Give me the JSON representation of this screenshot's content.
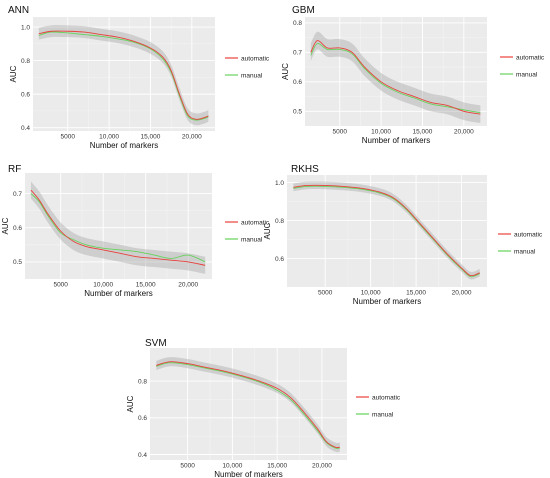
{
  "chart_data": [
    {
      "type": "line",
      "title": "ANN",
      "xlabel": "Number of markers",
      "ylabel": "AUC",
      "xlim": [
        800,
        22800
      ],
      "ylim": [
        0.38,
        1.06
      ],
      "xticks": [
        {
          "v": 5000,
          "label": "5000"
        },
        {
          "v": 10000,
          "label": "10,000"
        },
        {
          "v": 15000,
          "label": "15,000"
        },
        {
          "v": 20000,
          "label": "20,000"
        }
      ],
      "yticks": [
        {
          "v": 0.4,
          "label": "0.4"
        },
        {
          "v": 0.6,
          "label": "0.6"
        },
        {
          "v": 0.8,
          "label": "0.8"
        },
        {
          "v": 1.0,
          "label": "1.0"
        }
      ],
      "series": [
        {
          "name": "automatic",
          "color": "#e8413c",
          "x": [
            1500,
            3000,
            5000,
            7000,
            9000,
            11000,
            13000,
            15000,
            16500,
            17500,
            18500,
            19500,
            20500,
            21500,
            22000
          ],
          "y": [
            0.96,
            0.975,
            0.975,
            0.97,
            0.955,
            0.94,
            0.915,
            0.875,
            0.82,
            0.74,
            0.6,
            0.48,
            0.45,
            0.46,
            0.47
          ]
        },
        {
          "name": "manual",
          "color": "#66d25c",
          "x": [
            1500,
            3000,
            5000,
            7000,
            9000,
            11000,
            13000,
            15000,
            16500,
            17500,
            18500,
            19500,
            20500,
            21500,
            22000
          ],
          "y": [
            0.95,
            0.97,
            0.965,
            0.955,
            0.945,
            0.93,
            0.91,
            0.87,
            0.81,
            0.73,
            0.59,
            0.47,
            0.445,
            0.455,
            0.465
          ]
        }
      ],
      "band": 0.035
    },
    {
      "type": "line",
      "title": "GBM",
      "xlabel": "Number of markers",
      "ylabel": "AUC",
      "xlim": [
        800,
        22800
      ],
      "ylim": [
        0.45,
        0.82
      ],
      "xticks": [
        {
          "v": 5000,
          "label": "5000"
        },
        {
          "v": 10000,
          "label": "10,000"
        },
        {
          "v": 15000,
          "label": "15,000"
        },
        {
          "v": 20000,
          "label": "20,000"
        }
      ],
      "yticks": [
        {
          "v": 0.5,
          "label": "0.5"
        },
        {
          "v": 0.6,
          "label": "0.6"
        },
        {
          "v": 0.7,
          "label": "0.7"
        },
        {
          "v": 0.8,
          "label": "0.8"
        }
      ],
      "series": [
        {
          "name": "automatic",
          "color": "#e8413c",
          "x": [
            1500,
            2300,
            3500,
            5000,
            6500,
            8000,
            10000,
            12000,
            14000,
            16000,
            18000,
            20000,
            22000
          ],
          "y": [
            0.7,
            0.74,
            0.715,
            0.715,
            0.7,
            0.65,
            0.6,
            0.57,
            0.55,
            0.53,
            0.52,
            0.5,
            0.49
          ]
        },
        {
          "name": "manual",
          "color": "#66d25c",
          "x": [
            1500,
            2300,
            3500,
            5000,
            6500,
            8000,
            10000,
            12000,
            14000,
            16000,
            18000,
            20000,
            22000
          ],
          "y": [
            0.69,
            0.73,
            0.71,
            0.71,
            0.695,
            0.645,
            0.595,
            0.565,
            0.545,
            0.525,
            0.515,
            0.505,
            0.495
          ]
        }
      ],
      "band": 0.03
    },
    {
      "type": "line",
      "title": "RF",
      "xlabel": "Number of markers",
      "ylabel": "AUC",
      "xlim": [
        800,
        22800
      ],
      "ylim": [
        0.45,
        0.76
      ],
      "xticks": [
        {
          "v": 5000,
          "label": "5000"
        },
        {
          "v": 10000,
          "label": "10,000"
        },
        {
          "v": 15000,
          "label": "15,000"
        },
        {
          "v": 20000,
          "label": "20,000"
        }
      ],
      "yticks": [
        {
          "v": 0.5,
          "label": "0.5"
        },
        {
          "v": 0.6,
          "label": "0.6"
        },
        {
          "v": 0.7,
          "label": "0.7"
        }
      ],
      "series": [
        {
          "name": "automatic",
          "color": "#e8413c",
          "x": [
            1500,
            2500,
            3500,
            5000,
            6500,
            8000,
            10000,
            12000,
            14000,
            16000,
            18000,
            20000,
            22000
          ],
          "y": [
            0.71,
            0.68,
            0.64,
            0.59,
            0.56,
            0.545,
            0.535,
            0.525,
            0.515,
            0.51,
            0.505,
            0.5,
            0.49
          ]
        },
        {
          "name": "manual",
          "color": "#66d25c",
          "x": [
            1500,
            2500,
            3500,
            5000,
            6500,
            8000,
            10000,
            12000,
            14000,
            16000,
            18000,
            20000,
            22000
          ],
          "y": [
            0.7,
            0.675,
            0.635,
            0.585,
            0.565,
            0.55,
            0.54,
            0.535,
            0.53,
            0.52,
            0.51,
            0.52,
            0.5
          ]
        }
      ],
      "band": 0.025
    },
    {
      "type": "line",
      "title": "RKHS",
      "xlabel": "Number of markers",
      "ylabel": "AUC",
      "xlim": [
        800,
        22800
      ],
      "ylim": [
        0.45,
        1.04
      ],
      "xticks": [
        {
          "v": 5000,
          "label": "5000"
        },
        {
          "v": 10000,
          "label": "10,000"
        },
        {
          "v": 15000,
          "label": "15,000"
        },
        {
          "v": 20000,
          "label": "20,000"
        }
      ],
      "yticks": [
        {
          "v": 0.6,
          "label": "0.6"
        },
        {
          "v": 0.8,
          "label": "0.8"
        },
        {
          "v": 1.0,
          "label": "1.0"
        }
      ],
      "series": [
        {
          "name": "automatic",
          "color": "#e8413c",
          "x": [
            1500,
            3000,
            5000,
            7000,
            9000,
            11000,
            12500,
            14000,
            15500,
            17000,
            18500,
            20000,
            21000,
            22000
          ],
          "y": [
            0.975,
            0.985,
            0.985,
            0.98,
            0.97,
            0.95,
            0.92,
            0.86,
            0.78,
            0.7,
            0.62,
            0.55,
            0.51,
            0.525
          ]
        },
        {
          "name": "manual",
          "color": "#66d25c",
          "x": [
            1500,
            3000,
            5000,
            7000,
            9000,
            11000,
            12500,
            14000,
            15500,
            17000,
            18500,
            20000,
            21000,
            22000
          ],
          "y": [
            0.97,
            0.98,
            0.98,
            0.975,
            0.965,
            0.945,
            0.915,
            0.855,
            0.775,
            0.695,
            0.615,
            0.545,
            0.505,
            0.52
          ]
        }
      ],
      "band": 0.02
    },
    {
      "type": "line",
      "title": "SVM",
      "xlabel": "Number of markers",
      "ylabel": "AUC",
      "xlim": [
        800,
        22800
      ],
      "ylim": [
        0.37,
        0.98
      ],
      "xticks": [
        {
          "v": 5000,
          "label": "5000"
        },
        {
          "v": 10000,
          "label": "10,000"
        },
        {
          "v": 15000,
          "label": "15,000"
        },
        {
          "v": 20000,
          "label": "20,000"
        }
      ],
      "yticks": [
        {
          "v": 0.4,
          "label": "0.4"
        },
        {
          "v": 0.6,
          "label": "0.6"
        },
        {
          "v": 0.8,
          "label": "0.8"
        }
      ],
      "series": [
        {
          "name": "automatic",
          "color": "#e8413c",
          "x": [
            1500,
            3000,
            5000,
            7000,
            9000,
            11000,
            13000,
            15000,
            16500,
            18000,
            19500,
            20500,
            21500,
            22000
          ],
          "y": [
            0.885,
            0.905,
            0.895,
            0.875,
            0.855,
            0.83,
            0.8,
            0.76,
            0.71,
            0.63,
            0.54,
            0.47,
            0.44,
            0.44
          ]
        },
        {
          "name": "manual",
          "color": "#66d25c",
          "x": [
            1500,
            3000,
            5000,
            7000,
            9000,
            11000,
            13000,
            15000,
            16500,
            18000,
            19500,
            20500,
            21500,
            22000
          ],
          "y": [
            0.88,
            0.9,
            0.89,
            0.87,
            0.85,
            0.825,
            0.795,
            0.75,
            0.7,
            0.62,
            0.53,
            0.465,
            0.435,
            0.435
          ]
        }
      ],
      "band": 0.025
    }
  ]
}
